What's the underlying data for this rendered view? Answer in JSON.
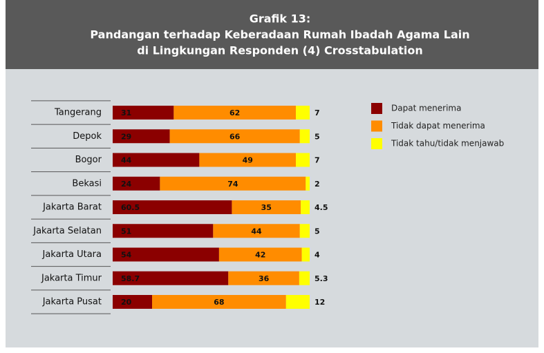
{
  "chart_data": {
    "type": "stacked-barh",
    "title": [
      "Grafik 13:",
      "Pandangan terhadap Keberadaan Rumah Ibadah Agama Lain",
      "di Lingkungan Responden (4) Crosstabulation"
    ],
    "categories": [
      "Tangerang",
      "Depok",
      "Bogor",
      "Bekasi",
      "Jakarta Barat",
      "Jakarta Selatan",
      "Jakarta Utara",
      "Jakarta Timur",
      "Jakarta Pusat"
    ],
    "series": [
      {
        "name": "Dapat menerima",
        "color": "#8b0000",
        "values": [
          31,
          29,
          44,
          24,
          60.5,
          51,
          54,
          58.7,
          20
        ]
      },
      {
        "name": "Tidak dapat menerima",
        "color": "#ff8c00",
        "values": [
          62,
          66,
          49,
          74,
          35,
          44,
          42,
          36,
          68
        ]
      },
      {
        "name": "Tidak tahu/tidak menjawab",
        "color": "#ffff00",
        "values": [
          7,
          5,
          7,
          2,
          4.5,
          5,
          4,
          5.3,
          12
        ]
      }
    ],
    "xlim": [
      0,
      100
    ]
  }
}
